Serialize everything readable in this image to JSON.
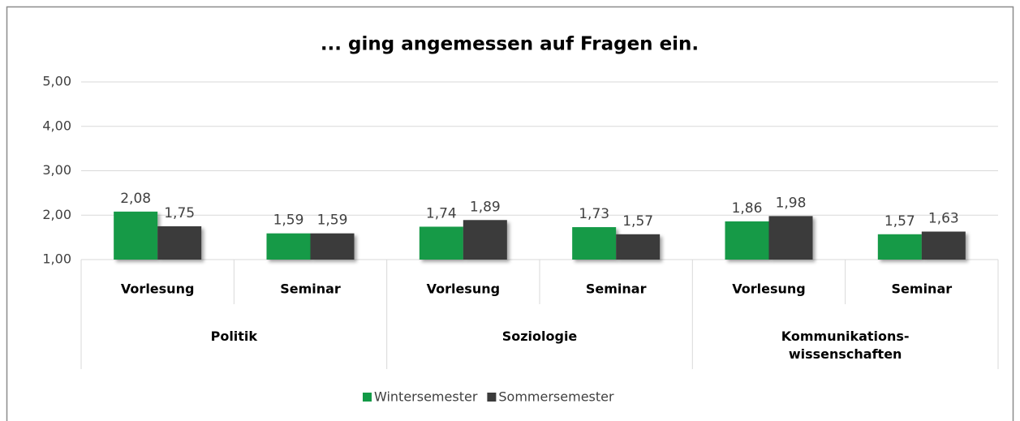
{
  "chart_data": {
    "type": "bar",
    "title": "... ging angemessen auf Fragen ein.",
    "categories": [
      "Vorlesung",
      "Seminar",
      "Vorlesung",
      "Seminar",
      "Vorlesung",
      "Seminar"
    ],
    "groups": [
      "Politik",
      "Soziologie",
      "Kommunikations-\nwissenschaften"
    ],
    "series": [
      {
        "name": "Wintersemester",
        "color": "#129a47",
        "values": [
          2.08,
          1.59,
          1.74,
          1.73,
          1.86,
          1.57
        ],
        "value_labels": [
          "2,08",
          "1,59",
          "1,74",
          "1,73",
          "1,86",
          "1,57"
        ]
      },
      {
        "name": "Sommersemester",
        "color": "#3b3b3b",
        "values": [
          1.75,
          1.59,
          1.89,
          1.57,
          1.98,
          1.63
        ],
        "value_labels": [
          "1,75",
          "1,59",
          "1,89",
          "1,57",
          "1,98",
          "1,63"
        ]
      }
    ],
    "ylim": [
      1,
      5
    ],
    "yticks": [
      {
        "value": 1,
        "label": "1,00"
      },
      {
        "value": 2,
        "label": "2,00"
      },
      {
        "value": 3,
        "label": "3,00"
      },
      {
        "value": 4,
        "label": "4,00"
      },
      {
        "value": 5,
        "label": "5,00"
      }
    ],
    "grid": true,
    "legend": "bottom"
  }
}
